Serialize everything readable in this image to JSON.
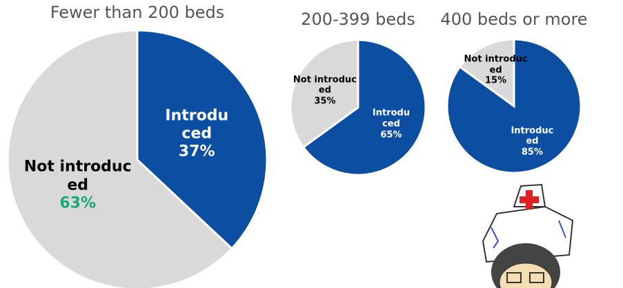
{
  "chart_data": [
    {
      "type": "pie",
      "title": "Fewer than 200 beds",
      "categories": [
        "Introduced",
        "Not introduced"
      ],
      "values": [
        37,
        63
      ],
      "value_labels": [
        "37%",
        "63%"
      ],
      "colors": [
        "#0b4ea2",
        "#d9d9d9"
      ]
    },
    {
      "type": "pie",
      "title": "200-399 beds",
      "categories": [
        "Introduced",
        "Not introduced"
      ],
      "values": [
        65,
        35
      ],
      "value_labels": [
        "65%",
        "35%"
      ],
      "colors": [
        "#0b4ea2",
        "#d9d9d9"
      ]
    },
    {
      "type": "pie",
      "title": "400 beds or more",
      "categories": [
        "Introduced",
        "Not introduced"
      ],
      "values": [
        85,
        15
      ],
      "value_labels": [
        "85%",
        "15%"
      ],
      "colors": [
        "#0b4ea2",
        "#d9d9d9"
      ]
    }
  ]
}
